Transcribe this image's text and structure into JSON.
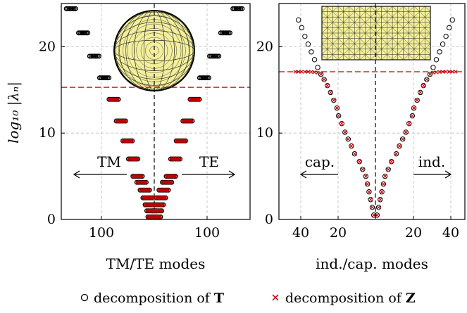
{
  "figure": {
    "ylabel": "log₁₀ |λₙ|",
    "legend": [
      {
        "label": "decomposition of ",
        "bold": "T",
        "marker": "circle",
        "color": "#000000"
      },
      {
        "label": "decomposition of ",
        "bold": "Z",
        "marker": "cross",
        "color": "#c00000"
      }
    ]
  },
  "chart_data": [
    {
      "type": "scatter",
      "panel": "left",
      "xlabel": "TM/TE modes",
      "xticks": [
        "100",
        "100"
      ],
      "ylim": [
        0,
        25
      ],
      "yticks": [
        "0",
        "10",
        "20"
      ],
      "grid": true,
      "threshold_y": 15.3,
      "annotations": [
        {
          "text": "TM",
          "arrow": "left"
        },
        {
          "text": "TE",
          "arrow": "right"
        }
      ],
      "inset": "sphere mesh",
      "series": [
        {
          "name": "decomposition of T",
          "marker": "circle",
          "color": "#000000",
          "points": [
            [
              -3,
              0.3
            ],
            [
              3,
              0.3
            ],
            [
              -5,
              1.0
            ],
            [
              5,
              1.0
            ],
            [
              -8,
              1.7
            ],
            [
              8,
              1.7
            ],
            [
              -12,
              2.5
            ],
            [
              12,
              2.5
            ],
            [
              -17,
              3.4
            ],
            [
              17,
              3.4
            ],
            [
              -23,
              4.3
            ],
            [
              23,
              4.3
            ],
            [
              -30,
              5.0
            ],
            [
              30,
              5.0
            ],
            [
              -38,
              7.0
            ],
            [
              38,
              7.0
            ],
            [
              -48,
              9.1
            ],
            [
              48,
              9.1
            ],
            [
              -60,
              11.4
            ],
            [
              60,
              11.4
            ],
            [
              -73,
              13.9
            ],
            [
              73,
              13.9
            ],
            [
              -90,
              16.4
            ],
            [
              90,
              16.4
            ],
            [
              -108,
              18.9
            ],
            [
              108,
              18.9
            ],
            [
              -128,
              21.6
            ],
            [
              128,
              21.6
            ],
            [
              -150,
              24.4
            ],
            [
              150,
              24.4
            ]
          ]
        },
        {
          "name": "decomposition of Z",
          "marker": "cross",
          "color": "#c00000",
          "points": [
            [
              -3,
              0.3
            ],
            [
              3,
              0.3
            ],
            [
              -5,
              1.0
            ],
            [
              5,
              1.0
            ],
            [
              -8,
              1.7
            ],
            [
              8,
              1.7
            ],
            [
              -12,
              2.5
            ],
            [
              12,
              2.5
            ],
            [
              -17,
              3.4
            ],
            [
              17,
              3.4
            ],
            [
              -23,
              4.3
            ],
            [
              23,
              4.3
            ],
            [
              -30,
              5.0
            ],
            [
              30,
              5.0
            ],
            [
              -38,
              7.0
            ],
            [
              38,
              7.0
            ],
            [
              -48,
              9.1
            ],
            [
              48,
              9.1
            ],
            [
              -60,
              11.4
            ],
            [
              60,
              11.4
            ],
            [
              -73,
              13.9
            ],
            [
              73,
              13.9
            ]
          ]
        }
      ]
    },
    {
      "type": "scatter",
      "panel": "right",
      "xlabel": "ind./cap. modes",
      "xticks": [
        "40",
        "20",
        "20",
        "40"
      ],
      "ylim": [
        0,
        25
      ],
      "yticks": [
        "0",
        "10",
        "20"
      ],
      "grid": true,
      "threshold_y": 17.1,
      "annotations": [
        {
          "text": "cap.",
          "arrow": "left"
        },
        {
          "text": "ind.",
          "arrow": "right"
        }
      ],
      "inset": "plate mesh",
      "series": [
        {
          "name": "decomposition of T",
          "marker": "circle",
          "color": "#000000",
          "points": [
            [
              -1,
              0.5
            ],
            [
              1,
              0.5
            ],
            [
              -2,
              1.4
            ],
            [
              2,
              1.4
            ],
            [
              -3,
              2.3
            ],
            [
              3,
              2.3
            ],
            [
              -4,
              3.2
            ],
            [
              4,
              3.2
            ],
            [
              -5,
              4.1
            ],
            [
              5,
              4.1
            ],
            [
              -6,
              5.0
            ],
            [
              6,
              5.0
            ],
            [
              -8,
              5.8
            ],
            [
              8,
              5.8
            ],
            [
              -10,
              6.7
            ],
            [
              10,
              6.7
            ],
            [
              -13,
              7.6
            ],
            [
              13,
              7.6
            ],
            [
              -15,
              8.5
            ],
            [
              15,
              8.5
            ],
            [
              -17,
              9.3
            ],
            [
              17,
              9.3
            ],
            [
              -19,
              10.1
            ],
            [
              19,
              10.1
            ],
            [
              -21,
              11.1
            ],
            [
              21,
              11.1
            ],
            [
              -23,
              12.0
            ],
            [
              23,
              12.0
            ],
            [
              -24,
              12.9
            ],
            [
              24,
              12.9
            ],
            [
              -26,
              13.8
            ],
            [
              26,
              13.8
            ],
            [
              -28,
              14.7
            ],
            [
              28,
              14.7
            ],
            [
              -30,
              15.5
            ],
            [
              30,
              15.5
            ],
            [
              -32,
              16.2
            ],
            [
              32,
              16.2
            ],
            [
              -34,
              16.8
            ],
            [
              34,
              16.8
            ],
            [
              -36,
              17.6
            ],
            [
              36,
              17.6
            ],
            [
              -38,
              18.5
            ],
            [
              38,
              18.5
            ],
            [
              -40,
              19.4
            ],
            [
              40,
              19.4
            ],
            [
              -42,
              20.3
            ],
            [
              42,
              20.3
            ],
            [
              -44,
              21.2
            ],
            [
              44,
              21.2
            ],
            [
              -46,
              22.2
            ],
            [
              46,
              22.2
            ],
            [
              -48,
              23.1
            ],
            [
              48,
              23.1
            ]
          ]
        },
        {
          "name": "decomposition of Z",
          "marker": "cross",
          "color": "#c00000",
          "points": [
            [
              -1,
              0.5
            ],
            [
              1,
              0.5
            ],
            [
              -2,
              1.4
            ],
            [
              2,
              1.4
            ],
            [
              -3,
              2.3
            ],
            [
              3,
              2.3
            ],
            [
              -4,
              3.2
            ],
            [
              4,
              3.2
            ],
            [
              -5,
              4.1
            ],
            [
              5,
              4.1
            ],
            [
              -6,
              5.0
            ],
            [
              6,
              5.0
            ],
            [
              -8,
              5.8
            ],
            [
              8,
              5.8
            ],
            [
              -10,
              6.7
            ],
            [
              10,
              6.7
            ],
            [
              -13,
              7.6
            ],
            [
              13,
              7.6
            ],
            [
              -15,
              8.5
            ],
            [
              15,
              8.5
            ],
            [
              -17,
              9.3
            ],
            [
              17,
              9.3
            ],
            [
              -19,
              10.1
            ],
            [
              19,
              10.1
            ],
            [
              -21,
              11.1
            ],
            [
              21,
              11.1
            ],
            [
              -23,
              12.0
            ],
            [
              23,
              12.0
            ],
            [
              -24,
              12.9
            ],
            [
              24,
              12.9
            ],
            [
              -26,
              13.8
            ],
            [
              26,
              13.8
            ],
            [
              -28,
              14.7
            ],
            [
              28,
              14.7
            ],
            [
              -30,
              15.5
            ],
            [
              30,
              15.5
            ],
            [
              -32,
              16.2
            ],
            [
              32,
              16.2
            ],
            [
              -34,
              16.8
            ],
            [
              34,
              16.8
            ],
            [
              -36,
              17.0
            ],
            [
              36,
              17.0
            ],
            [
              -38,
              17.05
            ],
            [
              38,
              17.05
            ],
            [
              -40,
              17.08
            ],
            [
              40,
              17.08
            ],
            [
              -42,
              17.1
            ],
            [
              42,
              17.1
            ],
            [
              -44,
              17.1
            ],
            [
              44,
              17.1
            ],
            [
              -46,
              17.1
            ],
            [
              46,
              17.1
            ],
            [
              -48,
              17.1
            ],
            [
              48,
              17.1
            ],
            [
              -50,
              17.1
            ],
            [
              50,
              17.1
            ]
          ]
        }
      ]
    }
  ]
}
